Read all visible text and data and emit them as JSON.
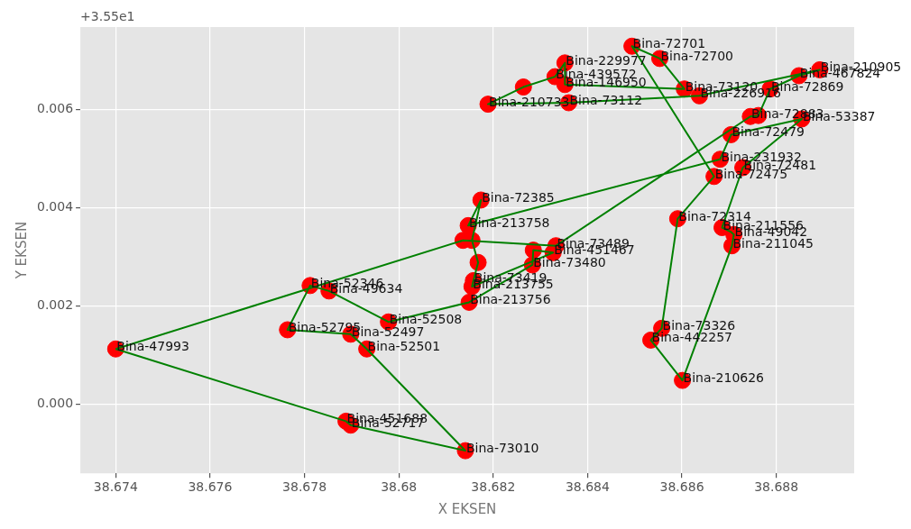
{
  "chart_data": {
    "type": "scatter",
    "xlabel": "X EKSEN",
    "ylabel": "Y EKSEN",
    "annotations": [
      "+3.55e1"
    ],
    "xlim": [
      38.67325,
      38.68965
    ],
    "xticks": [
      38.674,
      38.676,
      38.678,
      38.68,
      38.682,
      38.684,
      38.686,
      38.688
    ],
    "ylim": [
      -0.0014,
      0.00768
    ],
    "yticks": [
      {
        "value": 0,
        "label": "0.000"
      },
      0.002,
      0.004,
      0.006
    ],
    "grid": true,
    "series": [
      {
        "type": "line",
        "color": "#008000",
        "marker": "none",
        "x": [
          38.674,
          38.68136,
          38.68333,
          38.68745,
          38.68762,
          38.68787,
          38.68848,
          38.68892,
          38.68637,
          38.6836,
          38.68189,
          38.68264,
          38.68331,
          38.68352,
          38.68352,
          38.68605,
          38.68553,
          38.68494,
          38.68668,
          38.68591,
          38.68557,
          38.68534,
          38.68601,
          38.68706,
          38.6871,
          38.68704,
          38.68685,
          38.68729,
          38.68854,
          38.68704,
          38.68681,
          38.68147,
          38.68174,
          38.68155,
          38.68168,
          38.68158,
          38.68155,
          38.68327,
          38.68285,
          38.68283,
          38.68149,
          38.67978,
          38.67852,
          38.67812,
          38.67764,
          38.67898,
          38.67932,
          38.68141,
          38.67898,
          38.67888
        ],
        "values": [
          0.00113,
          0.00334,
          0.00323,
          0.00586,
          0.00588,
          0.00642,
          0.00669,
          0.00681,
          0.00628,
          0.00614,
          0.00611,
          0.00646,
          0.00667,
          0.00695,
          0.00651,
          0.00642,
          0.00704,
          0.00729,
          0.00464,
          0.00378,
          0.00155,
          0.00131,
          0.00049,
          0.00323,
          0.00346,
          0.00351,
          0.0036,
          0.00482,
          0.00581,
          0.00549,
          0.00499,
          0.00364,
          0.00416,
          0.00334,
          0.00289,
          0.00252,
          0.0024,
          0.00309,
          0.00314,
          0.00284,
          0.00208,
          0.00168,
          0.00231,
          0.00242,
          0.00152,
          0.00143,
          0.00113,
          -0.00094,
          -0.00042,
          -0.00034
        ]
      },
      {
        "type": "line",
        "color": "#008000",
        "marker": "none",
        "x": [
          38.67888,
          38.674
        ],
        "values": [
          -0.00034,
          0.00113
        ]
      },
      {
        "type": "scatter",
        "color": "#ff0000",
        "marker": "circle",
        "x": [
          38.674,
          38.68136,
          38.68333,
          38.68745,
          38.68762,
          38.68787,
          38.68848,
          38.68892,
          38.68637,
          38.6836,
          38.68189,
          38.68264,
          38.68331,
          38.68352,
          38.68352,
          38.68605,
          38.68553,
          38.68494,
          38.68668,
          38.68591,
          38.68557,
          38.68534,
          38.68601,
          38.68706,
          38.6871,
          38.68704,
          38.68685,
          38.68729,
          38.68854,
          38.68704,
          38.68681,
          38.68147,
          38.68174,
          38.68155,
          38.68168,
          38.68158,
          38.68155,
          38.68327,
          38.68285,
          38.68283,
          38.68149,
          38.67978,
          38.67852,
          38.67812,
          38.67764,
          38.67898,
          38.67932,
          38.68141,
          38.67898,
          38.67888
        ],
        "values": [
          0.00113,
          0.00334,
          0.00323,
          0.00586,
          0.00588,
          0.00642,
          0.00669,
          0.00681,
          0.00628,
          0.00614,
          0.00611,
          0.00646,
          0.00667,
          0.00695,
          0.00651,
          0.00642,
          0.00704,
          0.00729,
          0.00464,
          0.00378,
          0.00155,
          0.00131,
          0.00049,
          0.00323,
          0.00346,
          null,
          0.0036,
          0.00482,
          0.00581,
          0.00549,
          0.00499,
          0.00364,
          0.00416,
          0.00334,
          0.00289,
          0.00252,
          0.0024,
          0.00309,
          0.00314,
          0.00284,
          0.00208,
          0.00168,
          0.00231,
          0.00242,
          0.00152,
          0.00143,
          0.00113,
          -0.00094,
          -0.00042,
          -0.00034
        ],
        "value_labels": [
          "Bina-47993",
          null,
          "Bina-73489",
          "Bina-72883",
          null,
          "Bina-72869",
          "Bina-467824",
          "Bina-210905",
          "Bina-226916",
          "Bina-73112",
          "Bina-210733",
          null,
          "Bina-439572",
          "Bina-229977",
          "Bina-146950",
          "Bina-73120",
          "Bina-72700",
          "Bina-72701",
          "Bina-72475",
          "Bina-72314",
          "Bina-73326",
          "Bina-442257",
          "Bina-210626",
          "Bina-211045",
          "Bina-49042",
          null,
          "Bina-211556",
          "Bina-72481",
          "Bina-53387",
          "Bina-72479",
          "Bina-231932",
          "Bina-213758",
          "Bina-72385",
          null,
          null,
          "Bina-73419",
          "Bina-213755",
          "Bina-451467",
          null,
          "Bina-73480",
          "Bina-213756",
          "Bina-52508",
          "Bina-49634",
          "Bina-52346",
          "Bina-52795",
          "Bina-52497",
          "Bina-52501",
          "Bina-73010",
          "Bina-52717",
          "Bina-451688"
        ]
      }
    ]
  }
}
